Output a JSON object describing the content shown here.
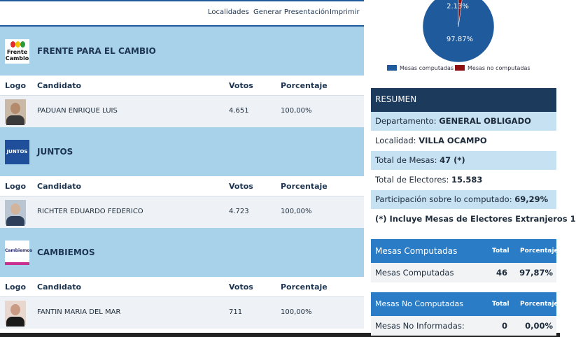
{
  "nav": {
    "links": [
      "Localidades",
      "Generar Presentación",
      "Imprimir"
    ]
  },
  "parties": [
    {
      "name": "FRENTE PARA EL CAMBIO",
      "logo_text": "Frente Cambio",
      "columns": [
        "Logo",
        "Candidato",
        "Votos",
        "Porcentaje"
      ],
      "candidate": "PADUAN ENRIQUE LUIS",
      "votes": "4.651",
      "percent": "100,00%"
    },
    {
      "name": "JUNTOS",
      "logo_text": "JUNTOS",
      "columns": [
        "Logo",
        "Candidato",
        "Votos",
        "Porcentaje"
      ],
      "candidate": "RICHTER EDUARDO FEDERICO",
      "votes": "4.723",
      "percent": "100,00%"
    },
    {
      "name": "CAMBIEMOS",
      "logo_text": "Cambiemos",
      "columns": [
        "Logo",
        "Candidato",
        "Votos",
        "Porcentaje"
      ],
      "candidate": "FANTIN MARIA DEL MAR",
      "votes": "711",
      "percent": "100,00%"
    }
  ],
  "pie": {
    "slices": [
      {
        "name": "Mesas computadas",
        "value": 97.87,
        "label": "97.87%",
        "color": "#1e5a9c"
      },
      {
        "name": "Mesas no computadas",
        "value": 2.13,
        "label": "2.13%",
        "color": "#8e0f0f"
      }
    ]
  },
  "resumen": {
    "title": "RESUMEN",
    "rows": [
      {
        "label": "Departamento:",
        "value": "GENERAL OBLIGADO"
      },
      {
        "label": "Localidad:",
        "value": "VILLA OCAMPO"
      },
      {
        "label": "Total de Mesas:",
        "value": "47 (*)"
      },
      {
        "label": "Total de Electores:",
        "value": "15.583"
      },
      {
        "label": "Participación sobre lo computado:",
        "value": "69,29%"
      }
    ],
    "note": "(*) Incluye Mesas de Electores Extranjeros 1"
  },
  "tables": [
    {
      "title": "Mesas Computadas",
      "columns": [
        "Total",
        "Porcentaje"
      ],
      "row": {
        "label": "Mesas Computadas",
        "total": "46",
        "percent": "97,87%"
      }
    },
    {
      "title": "Mesas No Computadas",
      "columns": [
        "Total",
        "Porcentaje"
      ],
      "row": {
        "label": "Mesas No Informadas:",
        "total": "0",
        "percent": "0,00%"
      }
    }
  ]
}
